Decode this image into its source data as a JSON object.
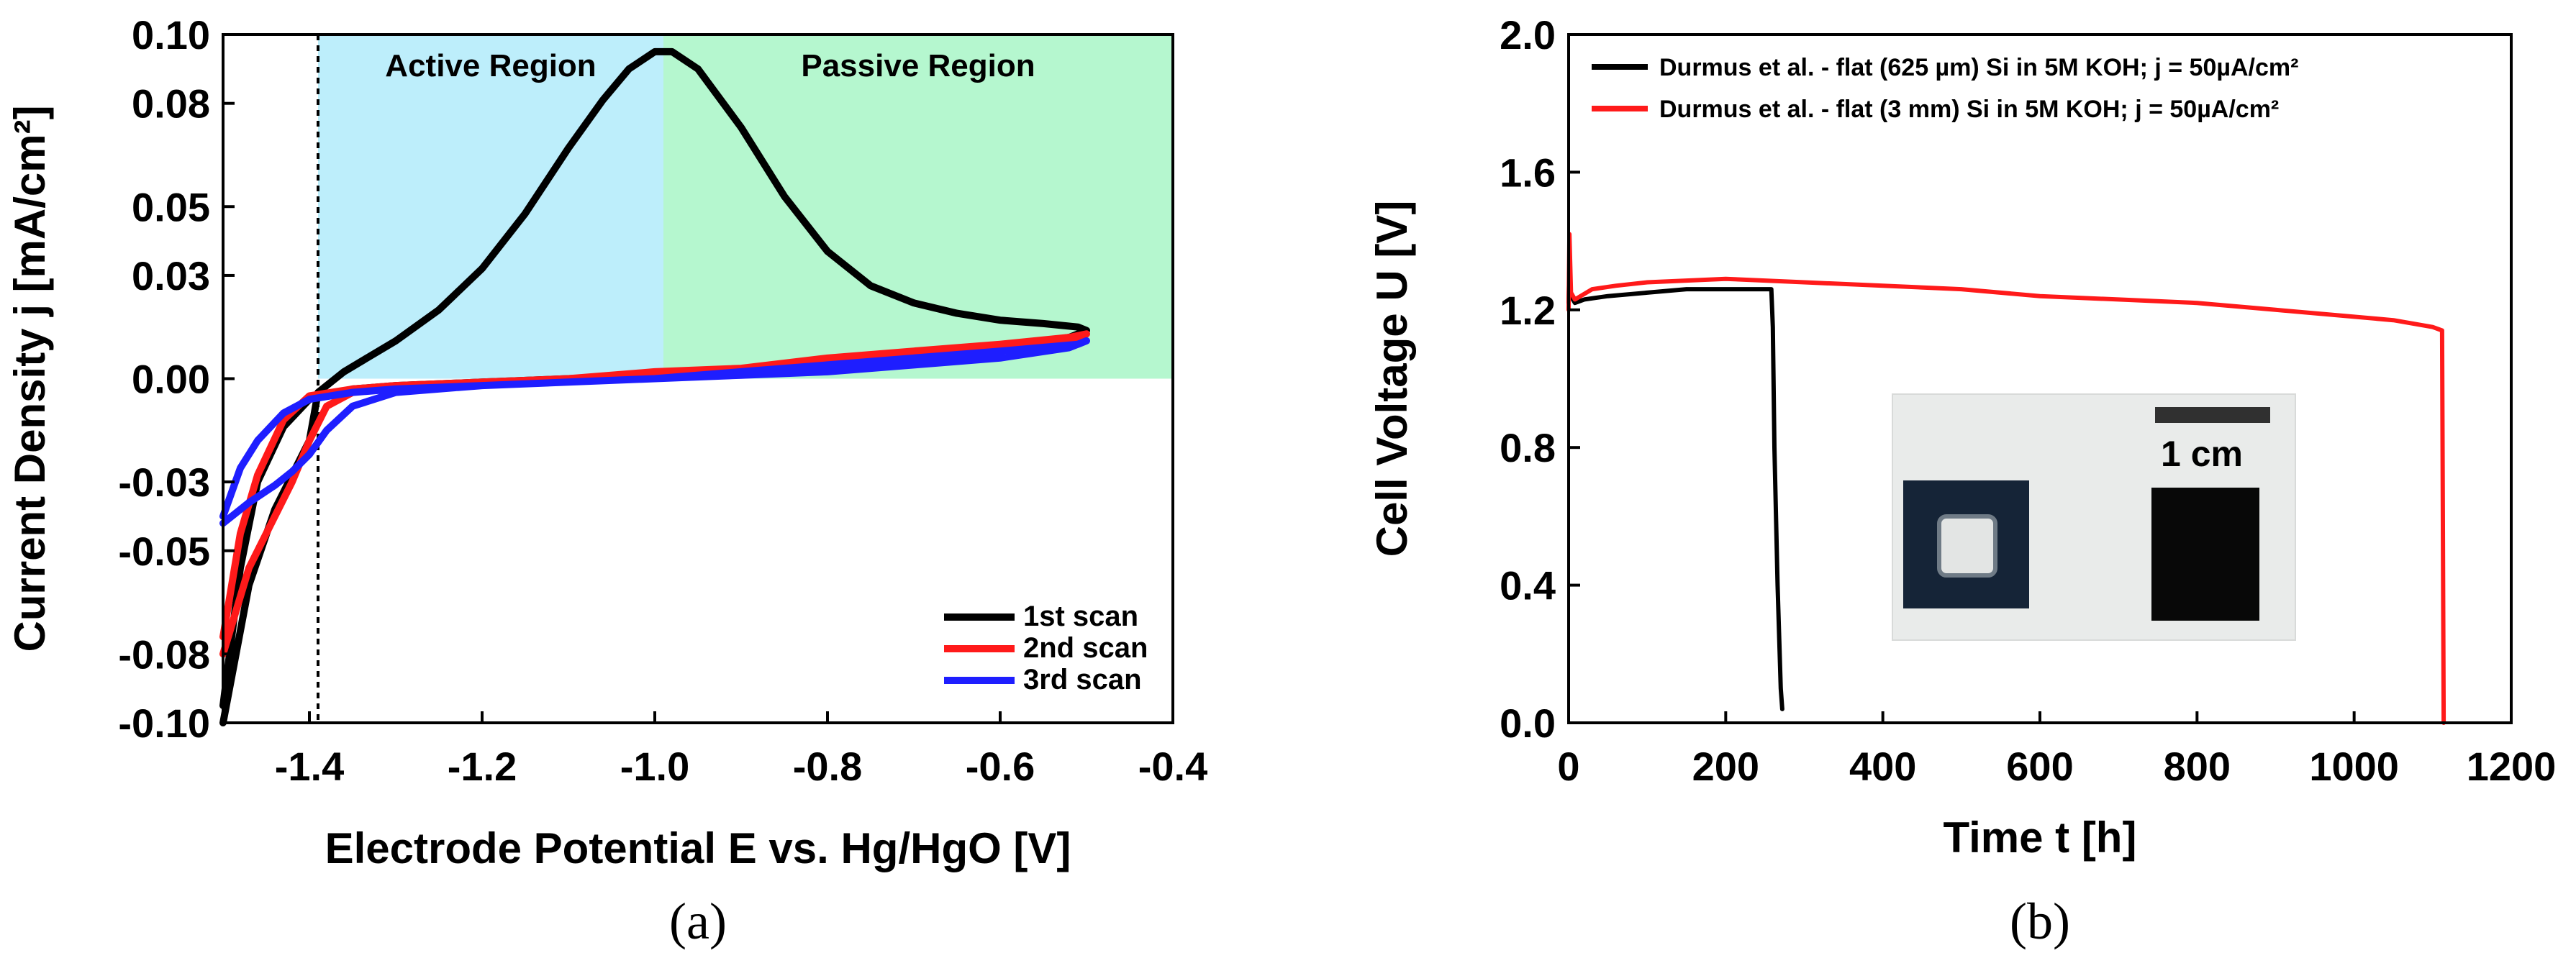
{
  "colors": {
    "black": "#000000",
    "red": "#ff1a1a",
    "blue": "#1e1eff",
    "active_region": "#bdeefb",
    "passive_region": "#b5f7cf"
  },
  "chart_data": [
    {
      "type": "line",
      "panel": "(a)",
      "xlabel": "Electrode Potential E vs. Hg/HgO [V]",
      "ylabel": "Current Density j [mA/cm²]",
      "xlim": [
        -1.5,
        -0.4
      ],
      "ylim": [
        -0.1,
        0.1
      ],
      "xticks": [
        "-1.4",
        "-1.2",
        "-1.0",
        "-0.8",
        "-0.6",
        "-0.4"
      ],
      "yticks": [
        "0.10",
        "0.08",
        "0.05",
        "0.03",
        "0.00",
        "-0.03",
        "-0.05",
        "-0.08",
        "-0.10"
      ],
      "regions": [
        {
          "label": "Active Region",
          "x": [
            -1.39,
            -0.99
          ],
          "y": [
            0,
            0.1
          ]
        },
        {
          "label": "Passive Region",
          "x": [
            -0.99,
            -0.4
          ],
          "y": [
            0,
            0.1
          ]
        }
      ],
      "vline": -1.39,
      "legend_position": "bottom-right",
      "series": [
        {
          "name": "1st scan",
          "color": "#000000",
          "x": [
            -1.5,
            -1.47,
            -1.44,
            -1.42,
            -1.4,
            -1.39,
            -1.36,
            -1.3,
            -1.25,
            -1.2,
            -1.15,
            -1.1,
            -1.06,
            -1.03,
            -1.0,
            -0.98,
            -0.95,
            -0.9,
            -0.85,
            -0.8,
            -0.75,
            -0.7,
            -0.65,
            -0.6,
            -0.55,
            -0.51,
            -0.5,
            -0.52,
            -0.6,
            -0.7,
            -0.8,
            -0.9,
            -1.0,
            -1.1,
            -1.2,
            -1.3,
            -1.35,
            -1.4,
            -1.43,
            -1.46,
            -1.48,
            -1.5
          ],
          "y": [
            -0.1,
            -0.06,
            -0.038,
            -0.028,
            -0.018,
            -0.004,
            0.002,
            0.011,
            0.02,
            0.032,
            0.048,
            0.067,
            0.081,
            0.09,
            0.095,
            0.095,
            0.09,
            0.073,
            0.053,
            0.037,
            0.027,
            0.022,
            0.019,
            0.017,
            0.016,
            0.015,
            0.014,
            0.012,
            0.009,
            0.006,
            0.004,
            0.002,
            0.001,
            0.0,
            -0.001,
            -0.002,
            -0.003,
            -0.006,
            -0.014,
            -0.03,
            -0.055,
            -0.095
          ]
        },
        {
          "name": "2nd scan",
          "color": "#ff1a1a",
          "x": [
            -1.5,
            -1.47,
            -1.44,
            -1.42,
            -1.4,
            -1.38,
            -1.35,
            -1.3,
            -1.2,
            -1.1,
            -1.0,
            -0.9,
            -0.8,
            -0.7,
            -0.6,
            -0.51,
            -0.5,
            -0.52,
            -0.6,
            -0.7,
            -0.8,
            -0.9,
            -1.0,
            -1.1,
            -1.2,
            -1.3,
            -1.35,
            -1.4,
            -1.43,
            -1.46,
            -1.48,
            -1.5
          ],
          "y": [
            -0.08,
            -0.055,
            -0.04,
            -0.03,
            -0.018,
            -0.008,
            -0.004,
            -0.002,
            -0.001,
            0.0,
            0.001,
            0.003,
            0.006,
            0.008,
            0.01,
            0.012,
            0.013,
            0.012,
            0.01,
            0.007,
            0.005,
            0.003,
            0.002,
            0.0,
            -0.001,
            -0.002,
            -0.003,
            -0.005,
            -0.012,
            -0.028,
            -0.045,
            -0.075
          ]
        },
        {
          "name": "3rd scan",
          "color": "#1e1eff",
          "x": [
            -1.5,
            -1.47,
            -1.44,
            -1.42,
            -1.4,
            -1.38,
            -1.35,
            -1.3,
            -1.2,
            -1.1,
            -1.0,
            -0.9,
            -0.8,
            -0.7,
            -0.6,
            -0.51,
            -0.5,
            -0.52,
            -0.6,
            -0.7,
            -0.8,
            -0.9,
            -1.0,
            -1.1,
            -1.2,
            -1.3,
            -1.35,
            -1.4,
            -1.43,
            -1.46,
            -1.48,
            -1.5
          ],
          "y": [
            -0.042,
            -0.036,
            -0.031,
            -0.027,
            -0.022,
            -0.015,
            -0.008,
            -0.004,
            -0.002,
            -0.001,
            0.0,
            0.002,
            0.004,
            0.006,
            0.008,
            0.01,
            0.011,
            0.009,
            0.006,
            0.004,
            0.002,
            0.001,
            0.0,
            -0.001,
            -0.002,
            -0.003,
            -0.004,
            -0.006,
            -0.01,
            -0.018,
            -0.026,
            -0.04
          ]
        }
      ]
    },
    {
      "type": "line",
      "panel": "(b)",
      "xlabel": "Time t [h]",
      "ylabel": "Cell Voltage U [V]",
      "xlim": [
        0,
        1200
      ],
      "ylim": [
        0,
        2.0
      ],
      "xticks": [
        "0",
        "200",
        "400",
        "600",
        "800",
        "1000",
        "1200"
      ],
      "yticks": [
        "2.0",
        "1.6",
        "1.2",
        "0.8",
        "0.4",
        "0.0"
      ],
      "legend_position": "top-left",
      "inset_scale_label": "1 cm",
      "series": [
        {
          "name": "Durmus et al. - flat (625 µm) Si in 5M KOH; j = 50µA/cm²",
          "color": "#000000",
          "x": [
            0,
            1,
            3,
            8,
            20,
            50,
            100,
            150,
            200,
            240,
            258,
            260,
            262,
            266,
            270,
            272
          ],
          "y": [
            1.22,
            1.33,
            1.24,
            1.22,
            1.23,
            1.24,
            1.25,
            1.26,
            1.26,
            1.26,
            1.26,
            1.15,
            0.8,
            0.4,
            0.1,
            0.04
          ]
        },
        {
          "name": "Durmus et al. - flat (3 mm) Si in 5M KOH; j = 50µA/cm²",
          "color": "#ff1a1a",
          "x": [
            0,
            1,
            3,
            8,
            30,
            60,
            100,
            200,
            300,
            400,
            500,
            600,
            700,
            800,
            900,
            1000,
            1050,
            1100,
            1112,
            1114
          ],
          "y": [
            1.2,
            1.42,
            1.25,
            1.23,
            1.26,
            1.27,
            1.28,
            1.29,
            1.28,
            1.27,
            1.26,
            1.24,
            1.23,
            1.22,
            1.2,
            1.18,
            1.17,
            1.15,
            1.14,
            0.0
          ]
        }
      ]
    }
  ]
}
